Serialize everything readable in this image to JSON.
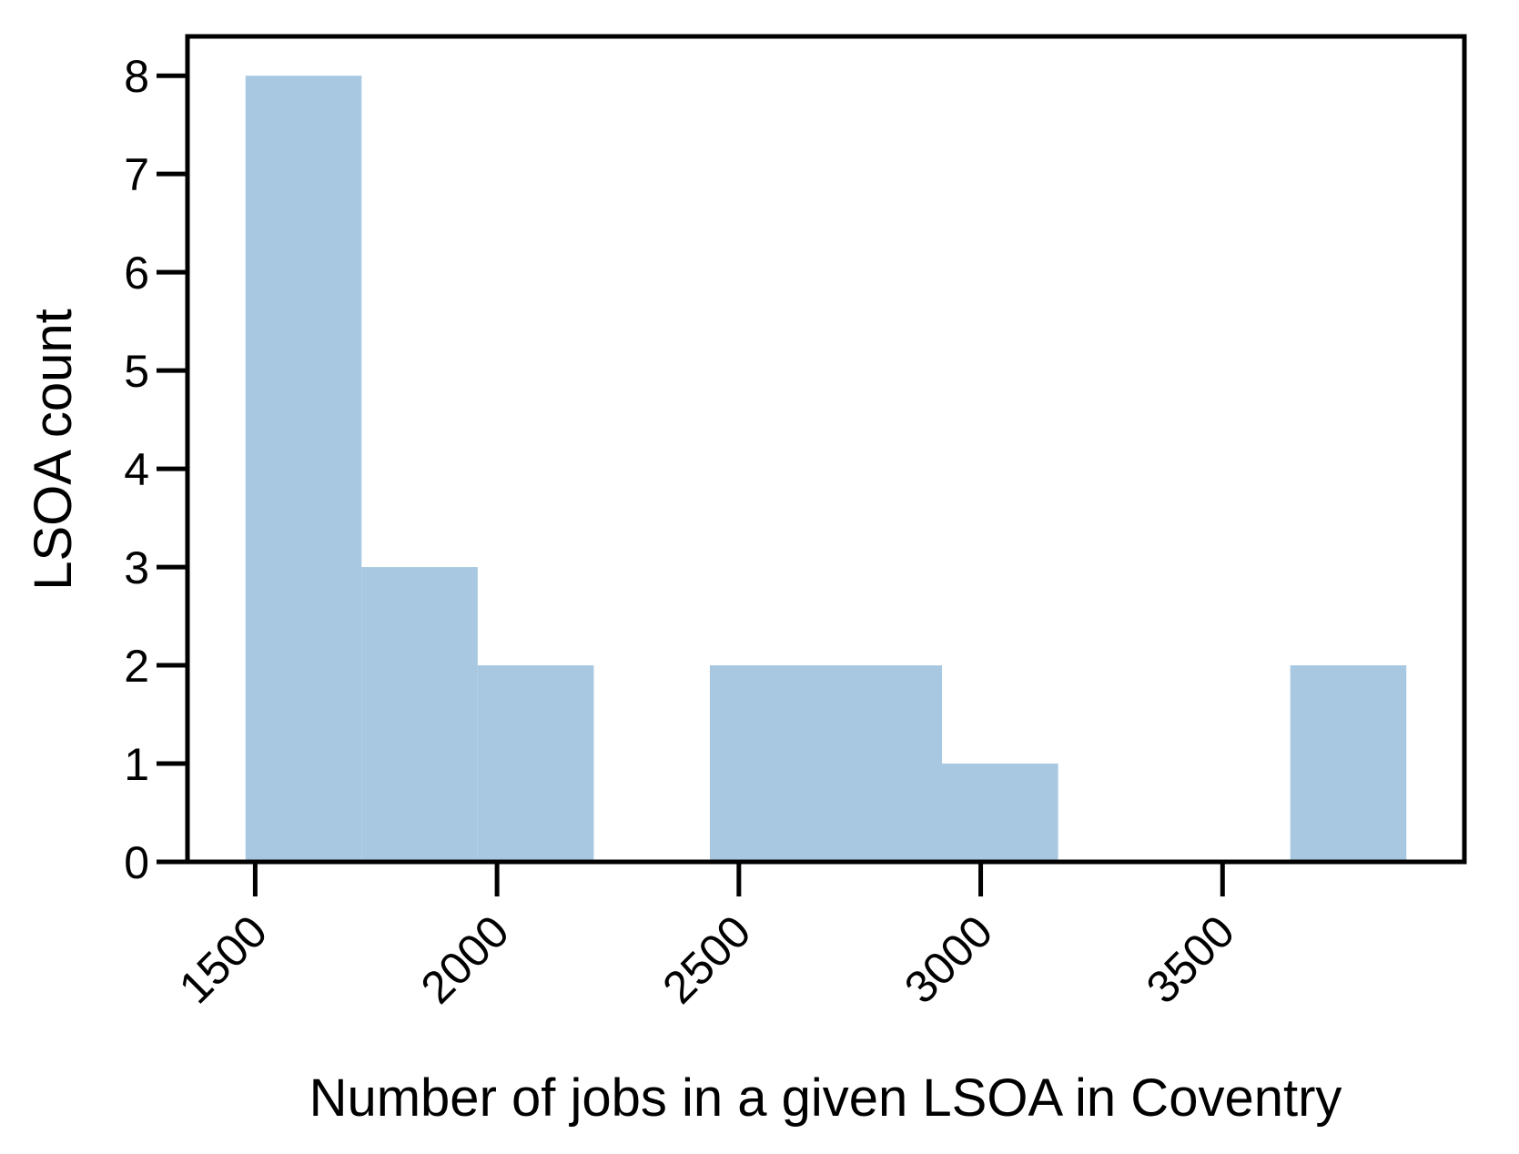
{
  "chart_data": {
    "type": "bar",
    "title": "",
    "xlabel": "Number of jobs in a given LSOA in Coventry",
    "ylabel": "LSOA count",
    "bins": [
      {
        "start": 1480,
        "end": 1720,
        "count": 8
      },
      {
        "start": 1720,
        "end": 1960,
        "count": 3
      },
      {
        "start": 1960,
        "end": 2200,
        "count": 2
      },
      {
        "start": 2200,
        "end": 2440,
        "count": 0
      },
      {
        "start": 2440,
        "end": 2680,
        "count": 2
      },
      {
        "start": 2680,
        "end": 2920,
        "count": 2
      },
      {
        "start": 2920,
        "end": 3160,
        "count": 1
      },
      {
        "start": 3160,
        "end": 3400,
        "count": 0
      },
      {
        "start": 3400,
        "end": 3640,
        "count": 0
      },
      {
        "start": 3640,
        "end": 3880,
        "count": 2
      }
    ],
    "xlim": [
      1360,
      4000
    ],
    "ylim": [
      0,
      8.4
    ],
    "xticks": [
      1500,
      2000,
      2500,
      3000,
      3500
    ],
    "yticks": [
      0,
      1,
      2,
      3,
      4,
      5,
      6,
      7,
      8
    ],
    "xtick_rotation": 45,
    "grid": false,
    "legend": "none",
    "bar_color": "#a7c8e0",
    "axis_color": "#000000"
  }
}
